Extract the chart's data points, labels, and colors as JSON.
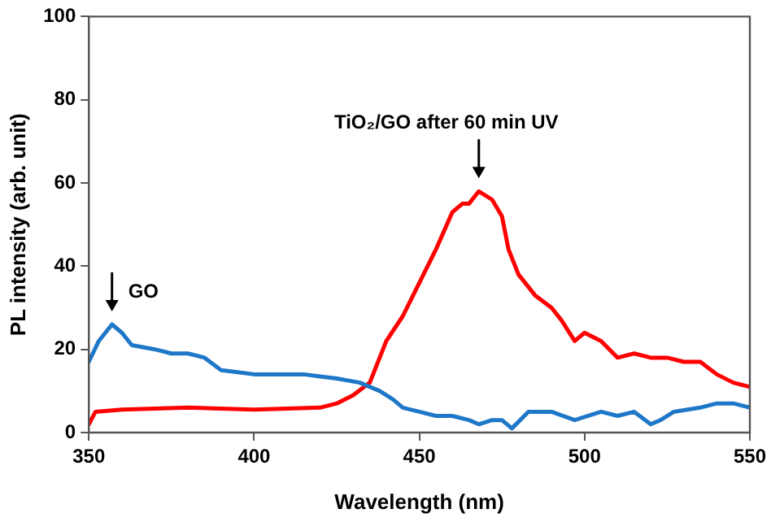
{
  "chart_data": {
    "type": "line",
    "xlabel": "Wavelength (nm)",
    "ylabel": "PL intensity (arb. unit)",
    "xlim": [
      350,
      550
    ],
    "xticks": [
      350,
      400,
      450,
      500,
      550
    ],
    "ylim": [
      0,
      100
    ],
    "yticks": [
      0,
      20,
      40,
      60,
      80,
      100
    ],
    "grid": false,
    "legend": false,
    "marker": "none",
    "line_style": "solid",
    "annotations": [
      {
        "text": "GO",
        "x": 357,
        "y": 26
      },
      {
        "text": "TiO₂/GO after 60 min UV",
        "x": 468,
        "y": 58
      }
    ],
    "series": [
      {
        "color": "#1f77c8",
        "x": [
          350,
          353,
          357,
          360,
          363,
          370,
          375,
          380,
          385,
          390,
          395,
          400,
          410,
          415,
          420,
          425,
          432,
          438,
          442,
          445,
          450,
          455,
          460,
          465,
          468,
          472,
          475,
          478,
          483,
          490,
          497,
          505,
          510,
          515,
          520,
          523,
          527,
          535,
          540,
          545,
          550
        ],
        "values": [
          17,
          22,
          26,
          24,
          21,
          20,
          19,
          19,
          18,
          15,
          14.5,
          14,
          14,
          14,
          13.5,
          13,
          12,
          10,
          8,
          6,
          5,
          4,
          4,
          3,
          2,
          3,
          3,
          1,
          5,
          5,
          3,
          5,
          4,
          5,
          2,
          3,
          5,
          6,
          7,
          7,
          6
        ]
      },
      {
        "color": "#ff0000",
        "x": [
          350,
          352,
          360,
          380,
          400,
          420,
          425,
          430,
          435,
          440,
          445,
          450,
          455,
          460,
          463,
          465,
          468,
          472,
          475,
          477,
          480,
          485,
          490,
          493,
          497,
          500,
          505,
          510,
          515,
          520,
          525,
          530,
          535,
          540,
          545,
          550
        ],
        "values": [
          2,
          5,
          5.5,
          6,
          5.5,
          6,
          7,
          9,
          12,
          22,
          28,
          36,
          44,
          53,
          55,
          55,
          58,
          56,
          52,
          44,
          38,
          33,
          30,
          27,
          22,
          24,
          22,
          18,
          19,
          18,
          18,
          17,
          17,
          14,
          12,
          11
        ]
      }
    ]
  }
}
